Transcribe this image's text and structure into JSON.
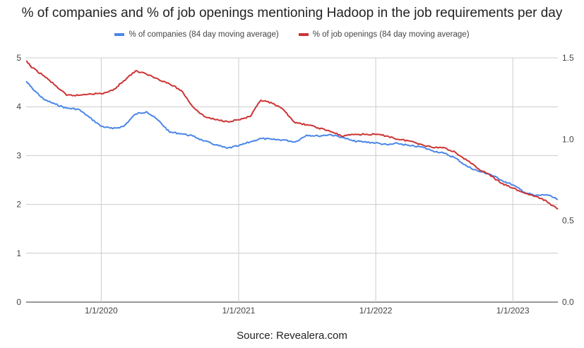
{
  "chart_data": {
    "type": "line",
    "title": "% of companies and % of job openings mentioning Hadoop in the job requirements per day",
    "x_tick_labels": [
      "1/1/2020",
      "1/1/2021",
      "1/1/2022",
      "1/1/2023"
    ],
    "x_range": [
      "2019-06-15",
      "2023-05-01"
    ],
    "y_left": {
      "range": [
        0,
        5
      ],
      "ticks": [
        "0",
        "1",
        "2",
        "3",
        "4",
        "5"
      ]
    },
    "y_right": {
      "range": [
        0,
        1.5
      ],
      "ticks": [
        "0.0",
        "0.5",
        "1.0",
        "1.5"
      ]
    },
    "grid": true,
    "legend_position": "top",
    "series": [
      {
        "name": "% of companies (84 day moving average)",
        "axis": "left",
        "color": "#4a86e8",
        "points": [
          [
            "2019-06-15",
            4.52
          ],
          [
            "2019-07-01",
            4.38
          ],
          [
            "2019-08-01",
            4.15
          ],
          [
            "2019-09-01",
            4.05
          ],
          [
            "2019-10-01",
            3.97
          ],
          [
            "2019-11-01",
            3.95
          ],
          [
            "2019-12-01",
            3.78
          ],
          [
            "2020-01-01",
            3.6
          ],
          [
            "2020-02-01",
            3.55
          ],
          [
            "2020-03-01",
            3.6
          ],
          [
            "2020-04-01",
            3.85
          ],
          [
            "2020-05-01",
            3.9
          ],
          [
            "2020-06-01",
            3.72
          ],
          [
            "2020-07-01",
            3.48
          ],
          [
            "2020-08-01",
            3.45
          ],
          [
            "2020-09-01",
            3.4
          ],
          [
            "2020-10-01",
            3.3
          ],
          [
            "2020-11-01",
            3.22
          ],
          [
            "2020-12-01",
            3.15
          ],
          [
            "2021-01-01",
            3.2
          ],
          [
            "2021-02-01",
            3.28
          ],
          [
            "2021-03-01",
            3.35
          ],
          [
            "2021-04-01",
            3.33
          ],
          [
            "2021-05-01",
            3.32
          ],
          [
            "2021-06-01",
            3.28
          ],
          [
            "2021-07-01",
            3.42
          ],
          [
            "2021-08-01",
            3.4
          ],
          [
            "2021-09-01",
            3.43
          ],
          [
            "2021-10-01",
            3.38
          ],
          [
            "2021-11-01",
            3.3
          ],
          [
            "2021-12-01",
            3.28
          ],
          [
            "2022-01-01",
            3.26
          ],
          [
            "2022-02-01",
            3.22
          ],
          [
            "2022-03-01",
            3.25
          ],
          [
            "2022-04-01",
            3.2
          ],
          [
            "2022-05-01",
            3.18
          ],
          [
            "2022-06-01",
            3.1
          ],
          [
            "2022-07-01",
            3.05
          ],
          [
            "2022-08-01",
            2.95
          ],
          [
            "2022-09-01",
            2.78
          ],
          [
            "2022-10-01",
            2.68
          ],
          [
            "2022-11-01",
            2.62
          ],
          [
            "2022-12-01",
            2.5
          ],
          [
            "2023-01-01",
            2.4
          ],
          [
            "2023-02-01",
            2.25
          ],
          [
            "2023-03-01",
            2.18
          ],
          [
            "2023-04-01",
            2.2
          ],
          [
            "2023-05-01",
            2.1
          ]
        ]
      },
      {
        "name": "% of job openings (84 day moving average)",
        "axis": "right",
        "color": "#cc3333",
        "points": [
          [
            "2019-06-15",
            1.48
          ],
          [
            "2019-07-01",
            1.44
          ],
          [
            "2019-08-01",
            1.39
          ],
          [
            "2019-09-01",
            1.33
          ],
          [
            "2019-10-01",
            1.27
          ],
          [
            "2019-11-01",
            1.27
          ],
          [
            "2019-12-01",
            1.28
          ],
          [
            "2020-01-01",
            1.28
          ],
          [
            "2020-02-01",
            1.3
          ],
          [
            "2020-03-01",
            1.36
          ],
          [
            "2020-04-01",
            1.42
          ],
          [
            "2020-05-01",
            1.4
          ],
          [
            "2020-06-01",
            1.37
          ],
          [
            "2020-07-01",
            1.34
          ],
          [
            "2020-08-01",
            1.3
          ],
          [
            "2020-09-01",
            1.2
          ],
          [
            "2020-10-01",
            1.14
          ],
          [
            "2020-11-01",
            1.12
          ],
          [
            "2020-12-01",
            1.11
          ],
          [
            "2021-01-01",
            1.12
          ],
          [
            "2021-02-01",
            1.14
          ],
          [
            "2021-03-01",
            1.24
          ],
          [
            "2021-04-01",
            1.22
          ],
          [
            "2021-05-01",
            1.18
          ],
          [
            "2021-06-01",
            1.1
          ],
          [
            "2021-07-01",
            1.09
          ],
          [
            "2021-08-01",
            1.07
          ],
          [
            "2021-09-01",
            1.05
          ],
          [
            "2021-10-01",
            1.02
          ],
          [
            "2021-11-01",
            1.03
          ],
          [
            "2021-12-01",
            1.03
          ],
          [
            "2022-01-01",
            1.03
          ],
          [
            "2022-02-01",
            1.02
          ],
          [
            "2022-03-01",
            1.0
          ],
          [
            "2022-04-01",
            0.99
          ],
          [
            "2022-05-01",
            0.97
          ],
          [
            "2022-06-01",
            0.95
          ],
          [
            "2022-07-01",
            0.95
          ],
          [
            "2022-08-01",
            0.92
          ],
          [
            "2022-09-01",
            0.87
          ],
          [
            "2022-10-01",
            0.82
          ],
          [
            "2022-11-01",
            0.78
          ],
          [
            "2022-12-01",
            0.73
          ],
          [
            "2023-01-01",
            0.7
          ],
          [
            "2023-02-01",
            0.67
          ],
          [
            "2023-03-01",
            0.65
          ],
          [
            "2023-04-01",
            0.62
          ],
          [
            "2023-05-01",
            0.57
          ]
        ]
      }
    ]
  },
  "source_note": "Source: Revealera.com"
}
